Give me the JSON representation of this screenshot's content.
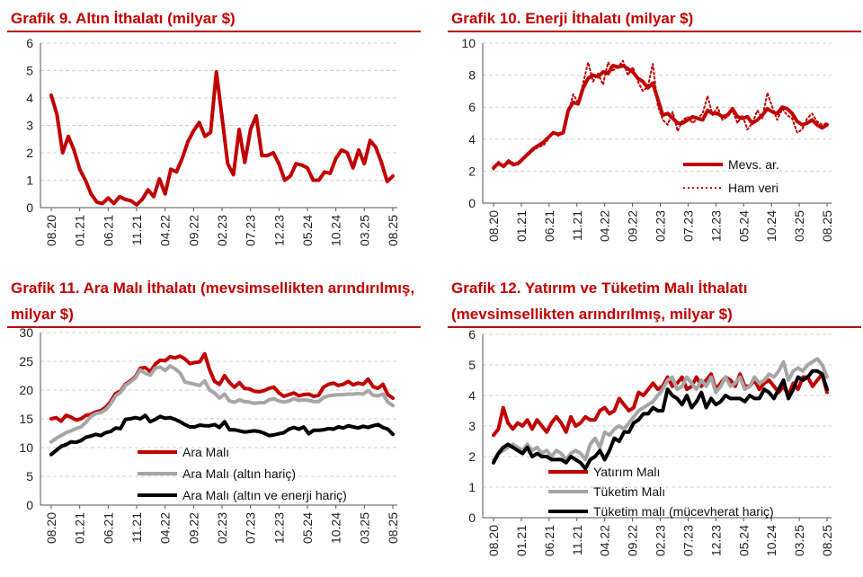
{
  "charts": [
    {
      "id": "p1",
      "title": "Grafik 9. Altın İthalatı (milyar $)",
      "chart_data": {
        "type": "line",
        "ylim": [
          0,
          6
        ],
        "yticks": [
          "0",
          "1",
          "2",
          "3",
          "4",
          "5",
          "6"
        ],
        "x_labels": [
          "08.20",
          "01.21",
          "06.21",
          "11.21",
          "04.22",
          "09.22",
          "02.23",
          "07.23",
          "12.23",
          "05.24",
          "10.24",
          "03.25",
          "08.25"
        ],
        "series": [
          {
            "name": "",
            "color": "#c00000",
            "style": "solid",
            "values": [
              4.1,
              3.4,
              2.0,
              2.6,
              2.1,
              1.4,
              1.0,
              0.5,
              0.2,
              0.15,
              0.35,
              0.15,
              0.4,
              0.3,
              0.25,
              0.1,
              0.3,
              0.65,
              0.4,
              1.05,
              0.5,
              1.4,
              1.3,
              1.8,
              2.4,
              2.8,
              3.1,
              2.6,
              2.75,
              4.95,
              3.3,
              1.6,
              1.2,
              2.85,
              1.65,
              2.85,
              3.35,
              1.9,
              1.9,
              2.0,
              1.6,
              1.0,
              1.15,
              1.6,
              1.55,
              1.45,
              1.0,
              1.0,
              1.3,
              1.25,
              1.8,
              2.1,
              2.0,
              1.45,
              2.1,
              1.6,
              2.45,
              2.2,
              1.65,
              0.95,
              1.15
            ]
          }
        ]
      }
    },
    {
      "id": "p2",
      "title": "Grafik 10. Enerji İthalatı (milyar $)",
      "chart_data": {
        "type": "line",
        "ylim": [
          0,
          10
        ],
        "yticks": [
          "0",
          "2",
          "4",
          "6",
          "8",
          "10"
        ],
        "x_labels": [
          "08.20",
          "01.21",
          "06.21",
          "11.21",
          "04.22",
          "09.22",
          "02.23",
          "07.23",
          "12.23",
          "05.24",
          "10.24",
          "03.25",
          "08.25"
        ],
        "legend": [
          "Mevs. ar.",
          "Ham veri"
        ],
        "series": [
          {
            "name": "Mevs. ar.",
            "color": "#c00000",
            "style": "solid",
            "values": [
              2.2,
              2.5,
              2.3,
              2.6,
              2.4,
              2.5,
              2.8,
              3.1,
              3.4,
              3.6,
              3.8,
              4.1,
              4.4,
              4.3,
              4.4,
              5.8,
              6.3,
              6.2,
              7.2,
              7.8,
              8.0,
              7.9,
              8.2,
              8.1,
              8.6,
              8.5,
              8.6,
              8.4,
              8.2,
              7.8,
              7.6,
              7.2,
              7.5,
              6.5,
              5.5,
              5.6,
              5.3,
              5.0,
              5.0,
              5.2,
              5.4,
              5.3,
              5.2,
              5.8,
              5.6,
              5.6,
              5.4,
              5.5,
              5.9,
              5.4,
              5.3,
              5.4,
              5.0,
              5.2,
              5.5,
              5.9,
              5.7,
              5.6,
              6.0,
              5.9,
              5.6,
              5.1,
              4.9,
              5.0,
              5.2,
              4.9,
              4.7,
              4.9
            ]
          },
          {
            "name": "Ham veri",
            "color": "#c00000",
            "style": "dotted",
            "values": [
              2.1,
              2.6,
              2.2,
              2.7,
              2.5,
              2.4,
              2.9,
              3.0,
              3.3,
              3.5,
              3.6,
              4.0,
              4.5,
              4.2,
              4.4,
              5.6,
              6.8,
              6.3,
              7.5,
              8.8,
              7.6,
              8.1,
              7.4,
              8.8,
              8.3,
              8.5,
              8.9,
              8.0,
              8.5,
              7.6,
              7.0,
              7.3,
              8.7,
              6.1,
              5.2,
              4.9,
              5.7,
              4.5,
              5.2,
              5.4,
              5.0,
              5.3,
              5.6,
              6.7,
              5.5,
              6.0,
              5.2,
              5.4,
              5.8,
              5.0,
              5.5,
              4.6,
              5.0,
              5.8,
              5.3,
              6.9,
              6.0,
              5.2,
              5.9,
              5.5,
              5.3,
              4.4,
              4.6,
              5.3,
              5.6,
              5.1,
              4.9,
              5.0
            ]
          }
        ]
      }
    },
    {
      "id": "p3",
      "title": "Grafik 11. Ara Malı İthalatı (mevsimsellikten arındırılmış, milyar $)",
      "chart_data": {
        "type": "line",
        "ylim": [
          0,
          30
        ],
        "yticks": [
          "0",
          "5",
          "10",
          "15",
          "20",
          "25",
          "30"
        ],
        "x_labels": [
          "08.20",
          "01.21",
          "06.21",
          "11.21",
          "04.22",
          "09.22",
          "02.23",
          "07.23",
          "12.23",
          "05.24",
          "10.24",
          "03.25",
          "08.25"
        ],
        "legend": [
          "Ara Malı",
          "Ara Malı (altın hariç)",
          "Ara Malı (altın ve enerji hariç)"
        ],
        "series": [
          {
            "name": "Ara Malı",
            "color": "#c00000",
            "style": "solid",
            "values": [
              15,
              15.2,
              14.6,
              15.6,
              15.3,
              14.8,
              15.0,
              15.6,
              15.8,
              16.2,
              16.4,
              17.0,
              18.0,
              19.4,
              19.8,
              21.0,
              21.6,
              22.3,
              23.8,
              23.9,
              23.2,
              24.5,
              25.2,
              25.1,
              25.8,
              25.6,
              25.9,
              25.4,
              24.6,
              24.8,
              24.9,
              26.3,
              23.5,
              21.5,
              21.0,
              22.5,
              21.3,
              20.5,
              21.3,
              20.3,
              20.2,
              19.8,
              19.7,
              19.9,
              20.3,
              20.5,
              19.5,
              18.9,
              19.2,
              19.5,
              19.0,
              19.2,
              19.3,
              18.9,
              19.1,
              20.5,
              21.0,
              21.2,
              20.8,
              21.0,
              21.5,
              20.9,
              21.2,
              21.0,
              21.9,
              20.6,
              20.3,
              21.0,
              19.2,
              18.6
            ]
          },
          {
            "name": "Ara Malı (altın hariç)",
            "color": "#a6a6a6",
            "style": "solid",
            "values": [
              11,
              11.6,
              12.1,
              12.6,
              12.9,
              13.3,
              13.6,
              14.4,
              15.4,
              15.9,
              16.1,
              16.6,
              17.6,
              19.0,
              19.6,
              20.8,
              21.4,
              22.1,
              23.5,
              22.9,
              22.6,
              23.8,
              24.0,
              23.4,
              24.2,
              23.7,
              23.0,
              21.4,
              21.2,
              21.0,
              20.8,
              21.6,
              20.0,
              19.5,
              18.6,
              19.3,
              18.1,
              17.9,
              18.3,
              18.0,
              17.9,
              17.7,
              17.8,
              17.8,
              18.3,
              18.5,
              18.1,
              17.9,
              18.1,
              18.5,
              18.2,
              18.3,
              18.2,
              18.0,
              18.0,
              18.7,
              19.0,
              19.1,
              19.2,
              19.2,
              19.3,
              19.3,
              19.4,
              19.3,
              19.9,
              19.1,
              19.0,
              19.3,
              17.9,
              17.3
            ]
          },
          {
            "name": "Ara Malı (altın ve enerji hariç)",
            "color": "#000000",
            "style": "solid",
            "values": [
              8.8,
              9.5,
              10.2,
              10.5,
              11.0,
              10.9,
              11.2,
              11.8,
              12.0,
              12.3,
              12.1,
              12.6,
              12.8,
              13.4,
              13.3,
              14.9,
              15.0,
              15.2,
              15.0,
              15.6,
              14.5,
              14.9,
              15.4,
              15.1,
              15.2,
              14.9,
              14.5,
              14.0,
              13.6,
              13.6,
              13.9,
              13.8,
              13.8,
              14.0,
              13.5,
              14.5,
              13.1,
              13.1,
              12.9,
              12.7,
              12.8,
              12.9,
              12.8,
              12.5,
              12.1,
              12.2,
              12.4,
              12.6,
              13.2,
              13.5,
              13.2,
              13.6,
              12.4,
              13.0,
              13.0,
              13.1,
              13.3,
              13.2,
              13.6,
              13.4,
              13.8,
              13.6,
              13.4,
              13.7,
              13.5,
              13.8,
              14.0,
              13.5,
              13.2,
              12.3
            ]
          }
        ]
      }
    },
    {
      "id": "p4",
      "title": "Grafik 12. Yatırım ve Tüketim Malı İthalatı (mevsimsellikten arındırılmış, milyar $)",
      "chart_data": {
        "type": "line",
        "ylim": [
          0,
          6
        ],
        "yticks": [
          "0",
          "1",
          "2",
          "3",
          "4",
          "5",
          "6"
        ],
        "x_labels": [
          "08.20",
          "01.21",
          "06.21",
          "11.21",
          "04.22",
          "09.22",
          "02.23",
          "07.23",
          "12.23",
          "05.24",
          "10.24",
          "03.25",
          "08.25"
        ],
        "legend": [
          "Yatırım Malı",
          "Tüketim Malı",
          "Tüketim malı (mücevherat hariç)"
        ],
        "series": [
          {
            "name": "Yatırım Malı",
            "color": "#c00000",
            "style": "solid",
            "values": [
              2.7,
              2.9,
              3.6,
              3.1,
              2.9,
              3.1,
              3.0,
              3.2,
              2.9,
              3.2,
              3.0,
              2.8,
              3.1,
              3.3,
              3.1,
              2.8,
              3.3,
              3.0,
              3.1,
              3.3,
              3.2,
              3.2,
              3.5,
              3.6,
              3.4,
              3.5,
              3.9,
              3.7,
              3.5,
              3.6,
              4.1,
              4.0,
              4.2,
              4.4,
              4.2,
              4.3,
              4.6,
              4.3,
              4.4,
              4.6,
              4.2,
              4.3,
              4.6,
              4.3,
              4.5,
              4.7,
              4.2,
              4.4,
              4.6,
              4.5,
              4.3,
              4.7,
              4.3,
              4.3,
              4.5,
              4.2,
              4.4,
              4.5,
              4.3,
              4.1,
              4.3,
              4.0,
              4.4,
              4.2,
              4.6,
              4.6,
              4.3,
              4.5,
              4.7,
              4.1
            ]
          },
          {
            "name": "Tüketim Malı",
            "color": "#a6a6a6",
            "style": "solid",
            "values": [
              1.9,
              2.1,
              2.2,
              2.3,
              2.4,
              2.3,
              2.2,
              2.4,
              2.2,
              2.3,
              2.1,
              2.2,
              2.0,
              2.2,
              2.1,
              1.9,
              2.1,
              2.2,
              2.1,
              1.9,
              2.4,
              2.6,
              2.3,
              2.8,
              2.7,
              2.9,
              3.0,
              2.9,
              3.1,
              3.3,
              3.5,
              3.6,
              3.7,
              3.8,
              4.0,
              4.2,
              4.5,
              4.6,
              4.2,
              4.3,
              4.6,
              4.4,
              4.2,
              4.5,
              4.3,
              4.6,
              4.1,
              4.3,
              4.6,
              4.3,
              4.4,
              4.6,
              4.2,
              4.3,
              4.6,
              4.4,
              4.5,
              4.7,
              4.6,
              4.8,
              5.1,
              4.5,
              4.8,
              4.9,
              4.8,
              5.0,
              5.1,
              5.2,
              5.0,
              4.6
            ]
          },
          {
            "name": "Tüketim malı (mücevherat hariç)",
            "color": "#000000",
            "style": "solid",
            "values": [
              1.8,
              2.1,
              2.3,
              2.4,
              2.3,
              2.2,
              2.1,
              2.3,
              2.0,
              2.1,
              2.0,
              2.0,
              1.9,
              1.9,
              1.9,
              1.8,
              2.0,
              1.9,
              1.8,
              1.6,
              1.9,
              2.0,
              2.2,
              1.9,
              2.2,
              2.6,
              2.5,
              2.8,
              2.8,
              3.1,
              3.2,
              3.4,
              3.4,
              3.6,
              3.5,
              3.5,
              4.2,
              4.0,
              3.9,
              3.7,
              4.0,
              3.6,
              3.8,
              4.1,
              3.6,
              3.9,
              3.7,
              3.8,
              4.0,
              3.9,
              3.9,
              3.9,
              3.8,
              4.0,
              3.9,
              3.9,
              4.2,
              4.1,
              3.9,
              4.2,
              4.5,
              3.9,
              4.2,
              4.6,
              4.5,
              4.6,
              4.8,
              4.8,
              4.7,
              4.2
            ]
          }
        ]
      }
    }
  ]
}
